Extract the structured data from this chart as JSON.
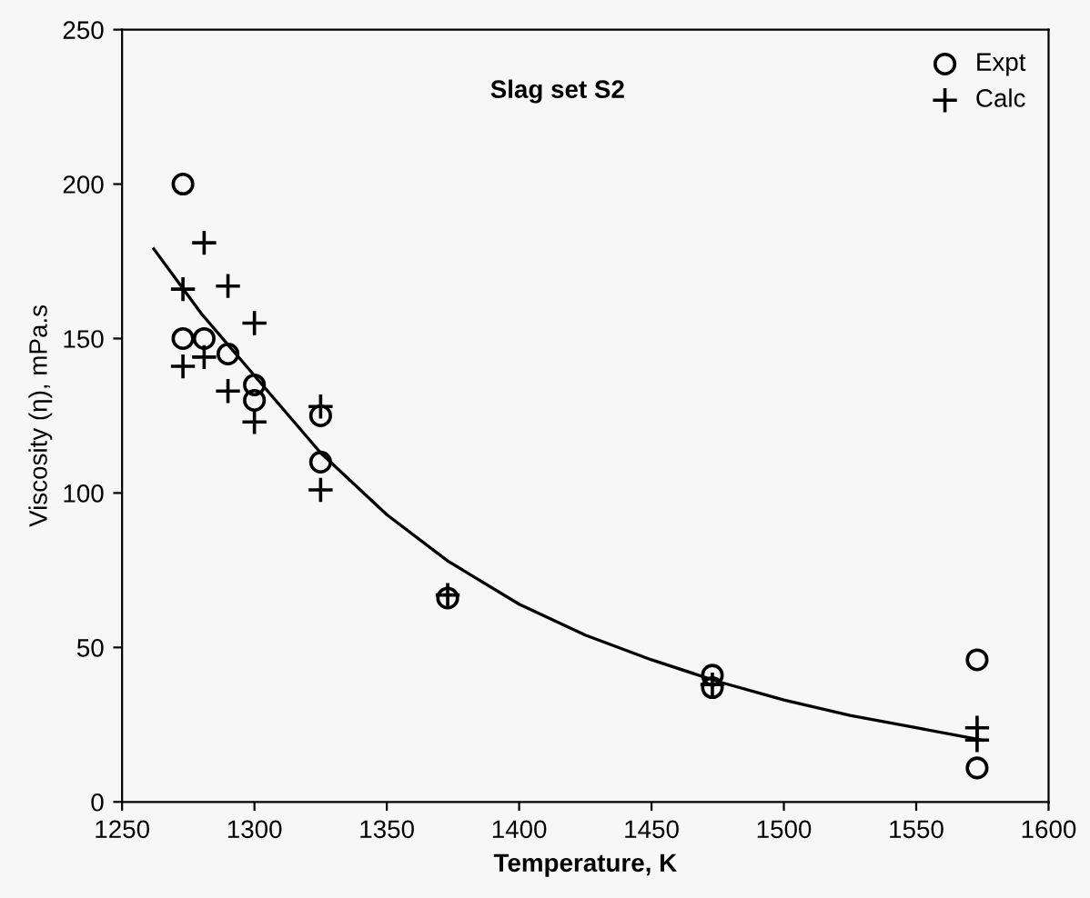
{
  "chart_data": {
    "type": "scatter",
    "xlabel": "Temperature, K",
    "ylabel": "Viscosity (η), mPa.s",
    "annotations": [
      "Slag set S2"
    ],
    "series": [
      {
        "name": "Expt",
        "marker": "circle",
        "color": "#000000",
        "x": [
          1273,
          1273,
          1281,
          1290,
          1300,
          1300,
          1325,
          1325,
          1373,
          1473,
          1473,
          1573,
          1573
        ],
        "values": [
          200,
          150,
          150,
          145,
          135,
          130,
          125,
          110,
          66,
          41,
          37,
          46,
          11
        ]
      },
      {
        "name": "Calc",
        "marker": "cross",
        "color": "#000000",
        "x": [
          1273,
          1273,
          1281,
          1281,
          1290,
          1290,
          1300,
          1300,
          1325,
          1325,
          1373,
          1473,
          1573,
          1573
        ],
        "values": [
          166,
          141,
          181,
          144,
          167,
          133,
          155,
          123,
          128,
          101,
          67,
          38,
          24,
          20
        ]
      },
      {
        "type": "line",
        "marker": "none",
        "color": "#000000",
        "x": [
          1262,
          1280,
          1300,
          1325,
          1350,
          1373,
          1400,
          1425,
          1450,
          1475,
          1500,
          1525,
          1550,
          1575
        ],
        "values": [
          179,
          158,
          138,
          113,
          93,
          78,
          64,
          54,
          46,
          39,
          33,
          28,
          24,
          20
        ]
      }
    ],
    "xlim": [
      1250,
      1600
    ],
    "ylim": [
      0,
      250
    ],
    "xticks": [
      1250,
      1300,
      1350,
      1400,
      1450,
      1500,
      1550,
      1600
    ],
    "yticks": [
      0,
      50,
      100,
      150,
      200,
      250
    ],
    "grid": false,
    "legend": "top right"
  }
}
